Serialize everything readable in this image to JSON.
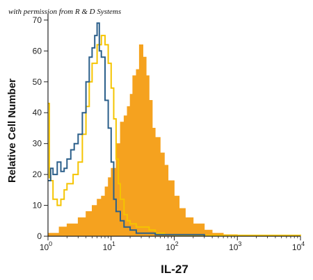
{
  "credit": "with permission from R & D Systems",
  "chart_data": {
    "type": "area",
    "title": "",
    "xlabel": "IL-27",
    "ylabel": "Relative Cell Number",
    "xscale": "log",
    "xlim": [
      1,
      10000
    ],
    "ylim": [
      0,
      72
    ],
    "yticks": [
      0,
      10,
      20,
      30,
      40,
      50,
      60,
      70
    ],
    "xticks": [
      {
        "value": 1,
        "base": "10",
        "exp": "0"
      },
      {
        "value": 10,
        "base": "10",
        "exp": "1"
      },
      {
        "value": 100,
        "base": "10",
        "exp": "2"
      },
      {
        "value": 1000,
        "base": "10",
        "exp": "3"
      },
      {
        "value": 10000,
        "base": "10",
        "exp": "4"
      }
    ],
    "grid": false,
    "legend": "none",
    "series": [
      {
        "style": "filled",
        "color": "#F5A21F",
        "x": [
          1,
          1.5,
          2,
          3,
          4,
          5,
          6,
          7,
          8,
          9,
          10,
          12,
          14,
          16,
          18,
          20,
          22,
          25,
          28,
          32,
          36,
          40,
          45,
          50,
          60,
          70,
          80,
          100,
          120,
          150,
          200,
          300,
          400,
          600,
          1000,
          10000
        ],
        "y": [
          1,
          3,
          4,
          6,
          8,
          10,
          12,
          13,
          16,
          19,
          22,
          30,
          37,
          39,
          42,
          46,
          52,
          54,
          62,
          58,
          52,
          44,
          35,
          32,
          27,
          23,
          18,
          13,
          9,
          6,
          4,
          2,
          1,
          0.5,
          0.3,
          0.2
        ]
      },
      {
        "style": "line",
        "color": "#F5C400",
        "x": [
          1,
          1.05,
          1.1,
          1.2,
          1.4,
          1.6,
          1.8,
          2,
          2.5,
          3,
          3.5,
          4,
          4.5,
          5,
          6,
          7,
          8,
          9,
          10,
          11,
          12,
          13,
          14,
          16,
          18,
          20,
          25,
          30,
          40,
          50,
          70,
          100,
          130,
          200,
          10000
        ],
        "y": [
          43,
          19,
          18,
          12,
          10,
          12,
          15,
          17,
          20,
          24,
          33,
          42,
          50,
          56,
          62,
          65,
          62,
          56,
          48,
          38,
          25,
          17,
          12,
          7,
          5,
          4,
          3,
          3,
          2,
          1,
          0.5,
          0.3,
          0.3,
          0.3,
          0.2
        ]
      },
      {
        "style": "line",
        "color": "#2B5F8A",
        "x": [
          1,
          1.1,
          1.2,
          1.4,
          1.6,
          1.8,
          2,
          2.3,
          2.6,
          3,
          3.5,
          4,
          4.5,
          5,
          5.5,
          6,
          6.5,
          7,
          8,
          9,
          10,
          11,
          12,
          14,
          16,
          20,
          25,
          30,
          50,
          100,
          200,
          300
        ],
        "y": [
          18,
          22,
          20,
          24,
          21,
          22,
          25,
          28,
          30,
          33,
          40,
          50,
          58,
          61,
          65,
          69,
          60,
          58,
          44,
          35,
          24,
          12,
          8,
          5,
          3,
          2,
          1,
          1,
          0.5,
          0.5,
          0.5,
          0
        ]
      }
    ]
  }
}
